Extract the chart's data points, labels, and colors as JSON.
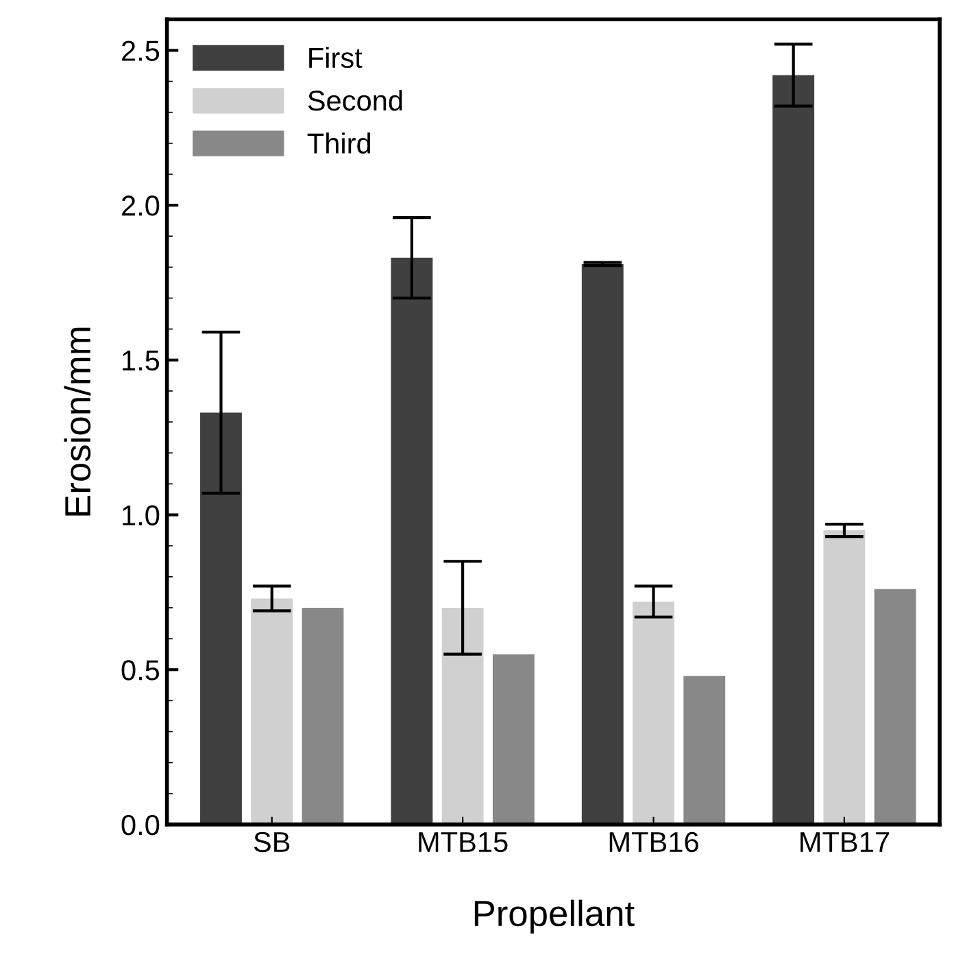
{
  "chart_data": {
    "type": "bar",
    "xlabel": "Propellant",
    "ylabel": "Erosion/mm",
    "categories": [
      "SB",
      "MTB15",
      "MTB16",
      "MTB17"
    ],
    "series": [
      {
        "name": "First",
        "color": "#404040",
        "values": [
          1.33,
          1.83,
          1.81,
          2.42
        ],
        "errors": [
          0.26,
          0.13,
          0.005,
          0.1
        ]
      },
      {
        "name": "Second",
        "color": "#d0d0d0",
        "values": [
          0.73,
          0.7,
          0.72,
          0.95
        ],
        "errors": [
          0.04,
          0.15,
          0.05,
          0.02
        ]
      },
      {
        "name": "Third",
        "color": "#888888",
        "values": [
          0.7,
          0.55,
          0.48,
          0.76
        ]
      }
    ],
    "ylim": [
      0,
      2.6
    ],
    "yticks": [
      {
        "value": 0,
        "label": "0.0"
      },
      0.5,
      {
        "value": 1,
        "label": "1.0"
      },
      1.5,
      {
        "value": 2,
        "label": "2.0"
      },
      2.5
    ],
    "legend": "top left",
    "grid": false
  }
}
